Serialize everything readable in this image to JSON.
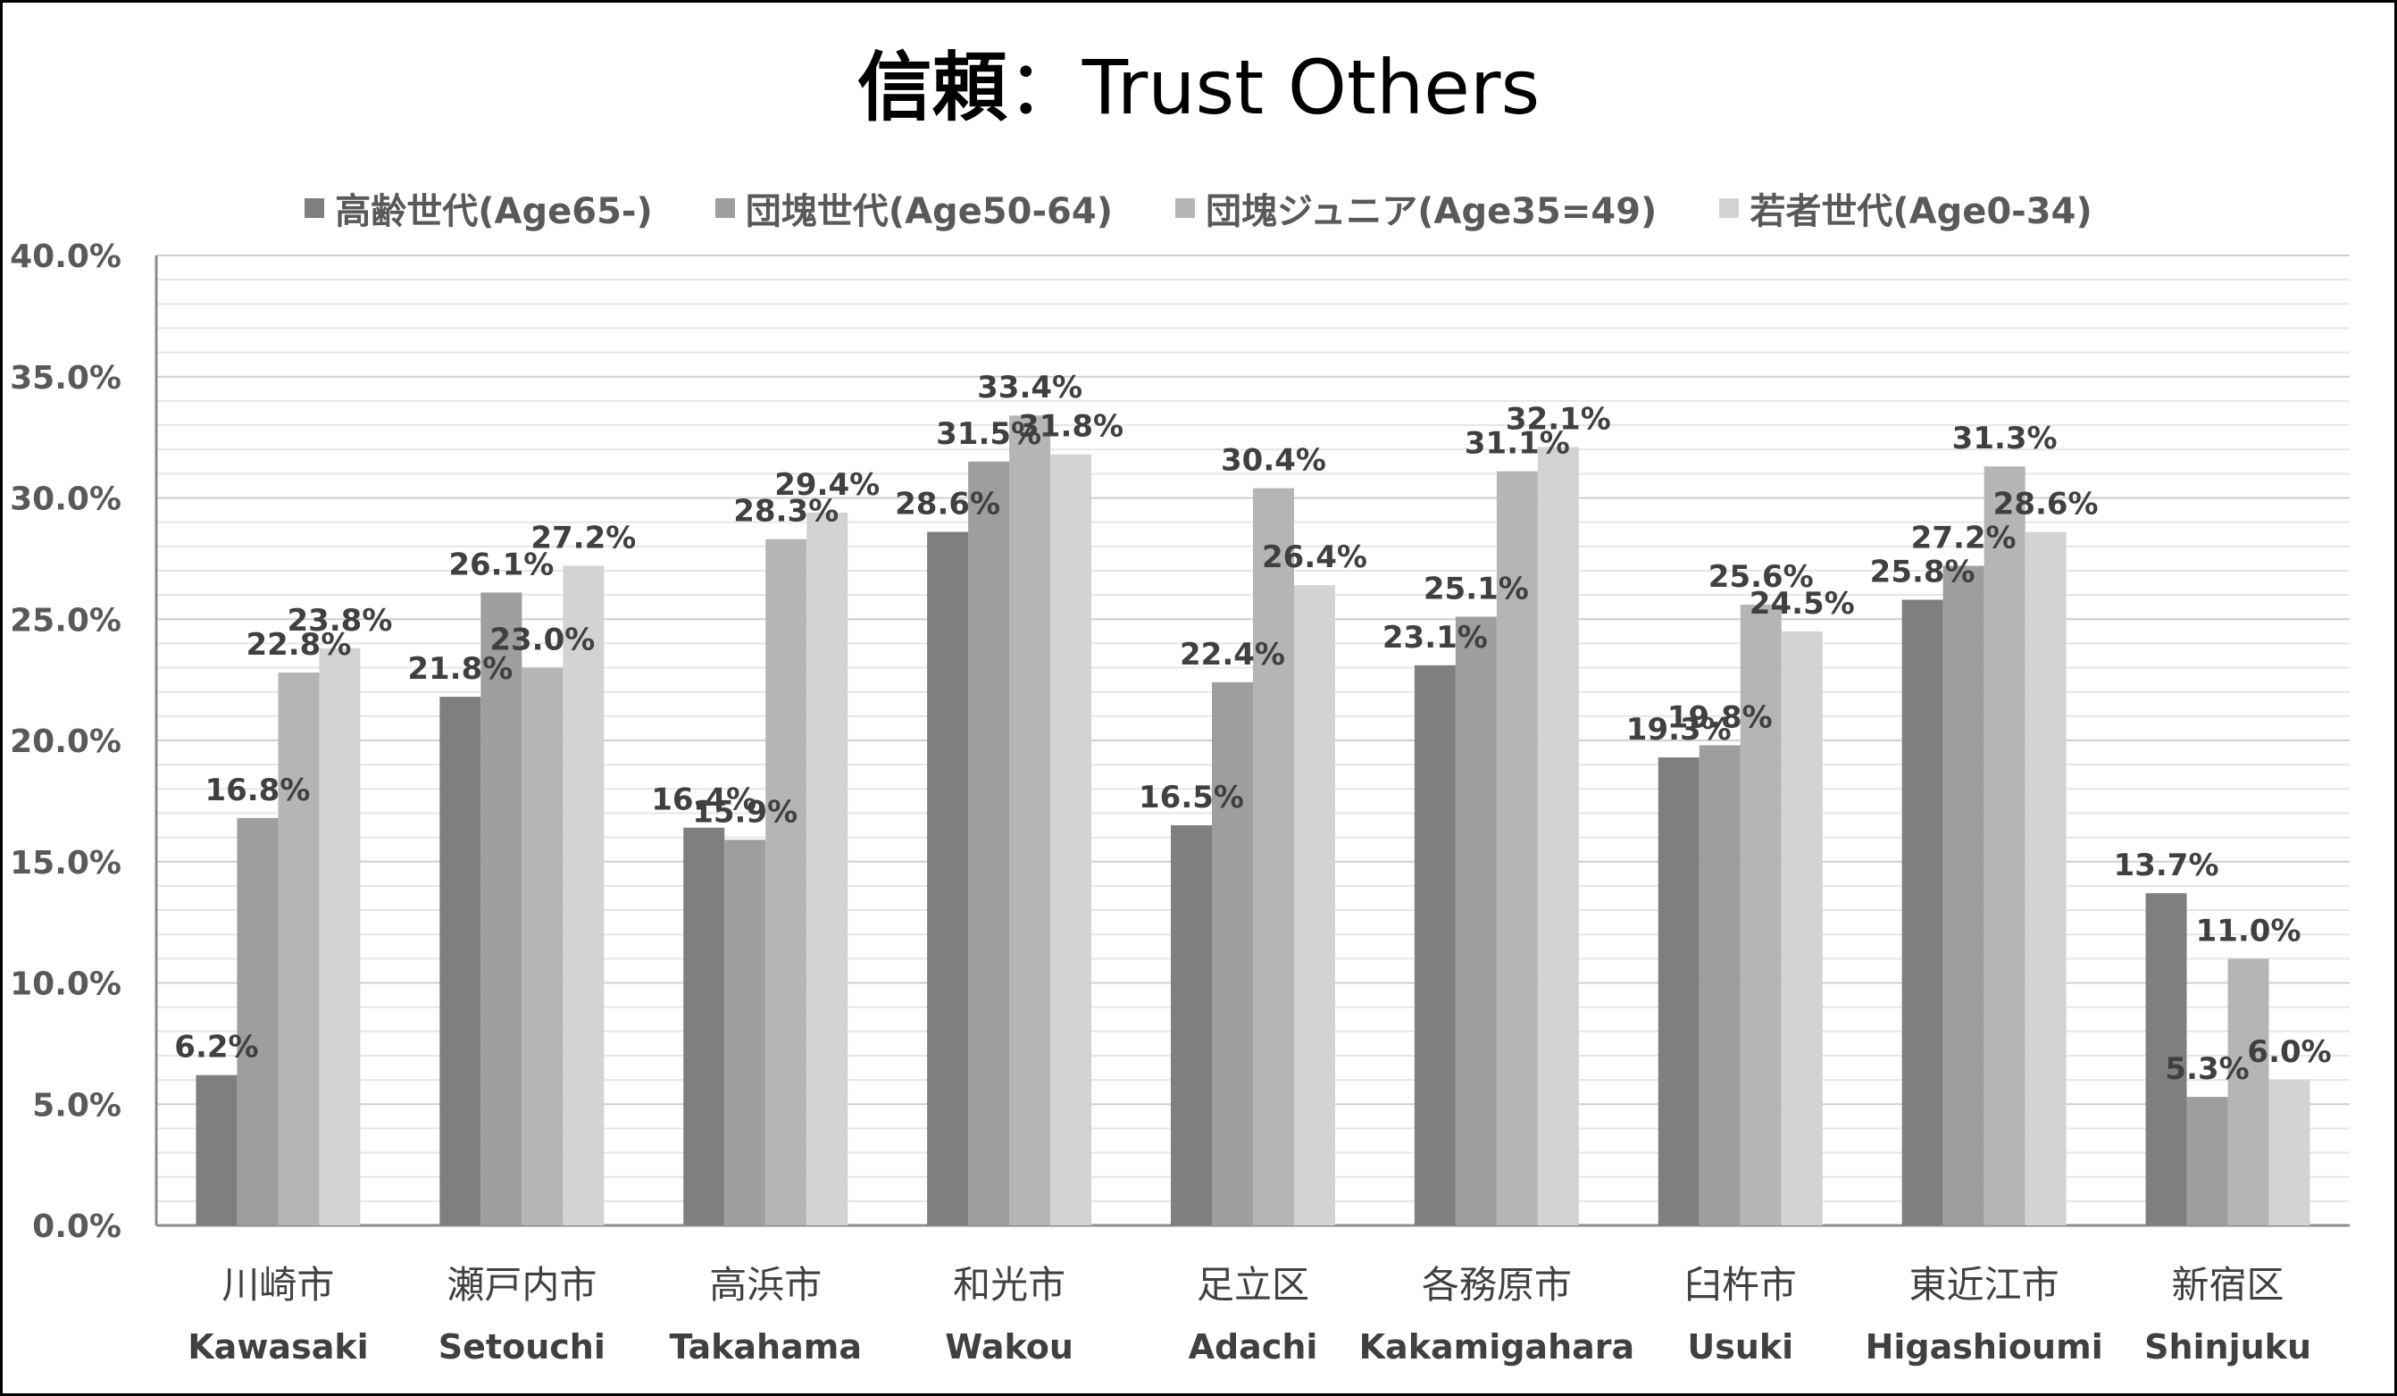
{
  "chart_data": {
    "type": "bar",
    "title_cjk": "信頼",
    "title_sep": "：",
    "title_en": "Trust Others",
    "categories": [
      "川崎市",
      "瀬戸内市",
      "高浜市",
      "和光市",
      "足立区",
      "各務原市",
      "臼杵市",
      "東近江市",
      "新宿区"
    ],
    "categories_en": [
      "Kawasaki",
      "Setouchi",
      "Takahama",
      "Wakou",
      "Adachi",
      "Kakamigahara",
      "Usuki",
      "Higashioumi",
      "Shinjuku"
    ],
    "series": [
      {
        "name": "高齢世代(Age65-)",
        "color": "#7f7f7f",
        "values": [
          6.2,
          21.8,
          16.4,
          28.6,
          16.5,
          23.1,
          19.3,
          25.8,
          13.7
        ]
      },
      {
        "name": "団塊世代(Age50-64)",
        "color": "#9e9e9e",
        "values": [
          16.8,
          26.1,
          15.9,
          31.5,
          22.4,
          25.1,
          19.8,
          27.2,
          5.3
        ]
      },
      {
        "name": "団塊ジュニア(Age35=49)",
        "color": "#b5b5b5",
        "values": [
          22.8,
          23.0,
          28.3,
          33.4,
          30.4,
          31.1,
          25.6,
          31.3,
          11.0
        ]
      },
      {
        "name": "若者世代(Age0-34)",
        "color": "#d3d3d3",
        "values": [
          23.8,
          27.2,
          29.4,
          31.8,
          26.4,
          32.1,
          24.5,
          28.6,
          6.0
        ]
      }
    ],
    "ylim": [
      0,
      40
    ],
    "ytick_step": 5,
    "ytick_labels": [
      "0.0%",
      "5.0%",
      "10.0%",
      "15.0%",
      "20.0%",
      "25.0%",
      "30.0%",
      "35.0%",
      "40.0%"
    ],
    "value_labels": [
      [
        "6.2%",
        "21.8%",
        "16.4%",
        "28.6%",
        "16.5%",
        "23.1%",
        "19.3%",
        "25.8%",
        "13.7%"
      ],
      [
        "16.8%",
        "26.1%",
        "15.9%",
        "31.5%",
        "22.4%",
        "25.1%",
        "19.8%",
        "27.2%",
        "5.3%"
      ],
      [
        "22.8%",
        "23.0%",
        "28.3%",
        "33.4%",
        "30.4%",
        "31.1%",
        "25.6%",
        "31.3%",
        "11.0%"
      ],
      [
        "23.8%",
        "27.2%",
        "29.4%",
        "31.8%",
        "26.4%",
        "32.1%",
        "24.5%",
        "28.6%",
        "6.0%"
      ]
    ],
    "minor_gridlines": true,
    "legend_position": "top"
  }
}
